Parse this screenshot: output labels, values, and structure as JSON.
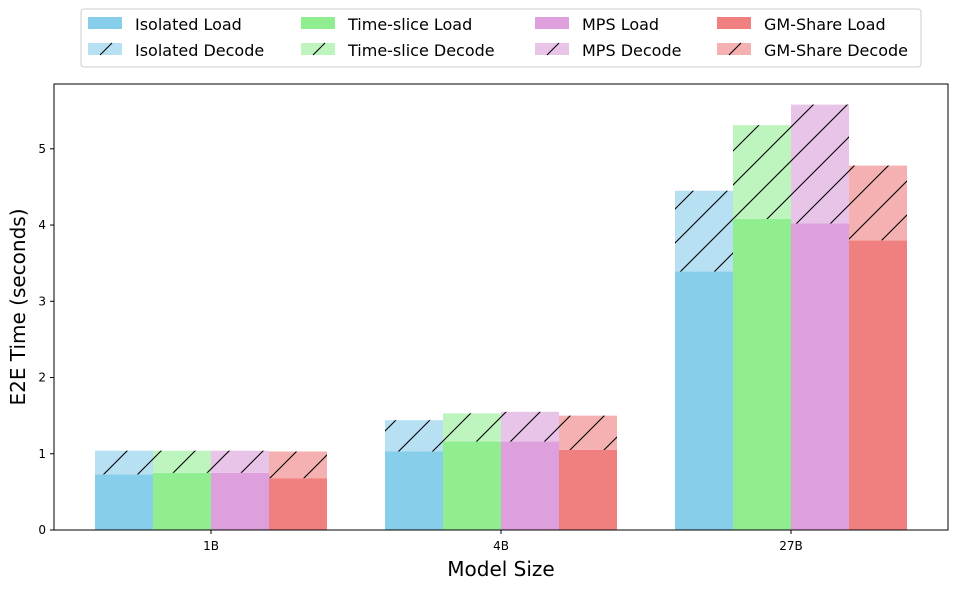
{
  "chart_data": {
    "type": "bar",
    "stacked": true,
    "xlabel": "Model Size",
    "ylabel": "E2E Time (seconds)",
    "categories": [
      "1B",
      "4B",
      "27B"
    ],
    "ylim": [
      0,
      5.85
    ],
    "yticks": [
      0,
      1,
      2,
      3,
      4,
      5
    ],
    "grid": false,
    "legend_position": "top-center",
    "legend_columns": 4,
    "groups": [
      {
        "name": "Isolated",
        "load_label": "Isolated Load",
        "decode_label": "Isolated Decode",
        "color": "#87CEEB",
        "decode_color": "#B8E0F3",
        "load": [
          0.73,
          1.03,
          3.39
        ],
        "decode": [
          0.31,
          0.41,
          1.06
        ]
      },
      {
        "name": "Time-slice",
        "load_label": "Time-slice Load",
        "decode_label": "Time-slice Decode",
        "color": "#90EE90",
        "decode_color": "#BEF5BE",
        "load": [
          0.75,
          1.16,
          4.08
        ],
        "decode": [
          0.29,
          0.37,
          1.23
        ]
      },
      {
        "name": "MPS",
        "load_label": "MPS Load",
        "decode_label": "MPS Decode",
        "color": "#DDA0DD",
        "decode_color": "#E9C4E9",
        "load": [
          0.75,
          1.16,
          4.02
        ],
        "decode": [
          0.29,
          0.39,
          1.56
        ]
      },
      {
        "name": "GM-Share",
        "load_label": "GM-Share Load",
        "decode_label": "GM-Share Decode",
        "color": "#F08080",
        "decode_color": "#F5B1B1",
        "load": [
          0.68,
          1.05,
          3.8
        ],
        "decode": [
          0.35,
          0.45,
          0.98
        ]
      }
    ]
  }
}
